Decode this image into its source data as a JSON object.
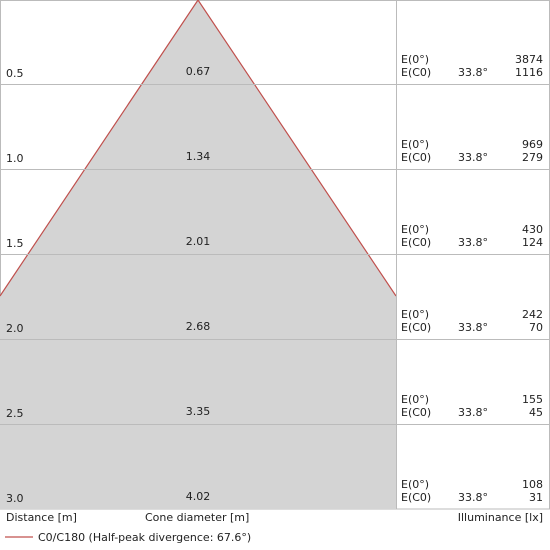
{
  "rows": [
    {
      "distance": "0.5",
      "diameter": "0.67",
      "e0_label": "E(0°)",
      "ec0_label": "E(C0)",
      "angle": "33.8°",
      "e0": "3874",
      "ec0": "1116"
    },
    {
      "distance": "1.0",
      "diameter": "1.34",
      "e0_label": "E(0°)",
      "ec0_label": "E(C0)",
      "angle": "33.8°",
      "e0": "969",
      "ec0": "279"
    },
    {
      "distance": "1.5",
      "diameter": "2.01",
      "e0_label": "E(0°)",
      "ec0_label": "E(C0)",
      "angle": "33.8°",
      "e0": "430",
      "ec0": "124"
    },
    {
      "distance": "2.0",
      "diameter": "2.68",
      "e0_label": "E(0°)",
      "ec0_label": "E(C0)",
      "angle": "33.8°",
      "e0": "242",
      "ec0": "70"
    },
    {
      "distance": "2.5",
      "diameter": "3.35",
      "e0_label": "E(0°)",
      "ec0_label": "E(C0)",
      "angle": "33.8°",
      "e0": "155",
      "ec0": "45"
    },
    {
      "distance": "3.0",
      "diameter": "4.02",
      "e0_label": "E(0°)",
      "ec0_label": "E(C0)",
      "angle": "33.8°",
      "e0": "108",
      "ec0": "31"
    }
  ],
  "footer": {
    "distance": "Distance [m]",
    "diameter": "Cone diameter [m]",
    "illuminance": "Illuminance [lx]"
  },
  "legend": "C0/C180 (Half-peak divergence: 67.6°)"
}
